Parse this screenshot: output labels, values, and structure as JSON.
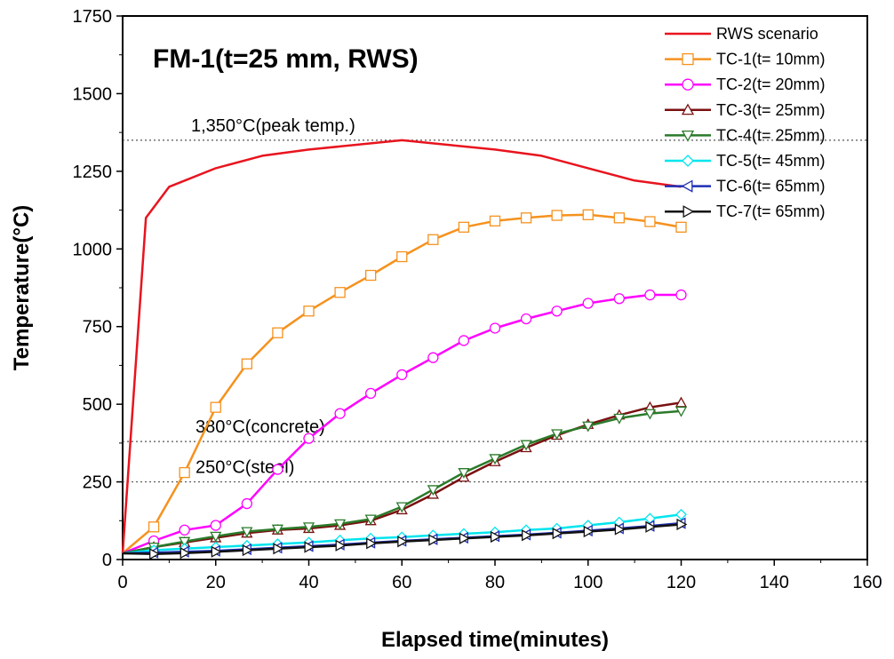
{
  "chart_data": {
    "type": "line",
    "title": "FM-1(t=25 mm, RWS)",
    "xlabel": "Elapsed time(minutes)",
    "ylabel": "Temperature(°C)",
    "xlim": [
      0,
      160
    ],
    "ylim": [
      0,
      1750
    ],
    "xticks": [
      "0",
      "20",
      "40",
      "60",
      "80",
      "100",
      "120",
      "140",
      "160"
    ],
    "yticks": [
      "0",
      "250",
      "500",
      "750",
      "1000",
      "1250",
      "1500",
      "1750"
    ],
    "legend_position": "top-right",
    "reference_lines": [
      {
        "value": 1350,
        "label": "1,350°C(peak temp.)"
      },
      {
        "value": 380,
        "label": "380°C(concrete)"
      },
      {
        "value": 250,
        "label": "250°C(steel)"
      }
    ],
    "series": [
      {
        "name": "RWS scenario",
        "color": "#e8141e",
        "marker": "none",
        "x": [
          0,
          5,
          10,
          20,
          30,
          40,
          60,
          70,
          80,
          90,
          100,
          110,
          120
        ],
        "y": [
          20,
          1100,
          1200,
          1260,
          1300,
          1320,
          1350,
          1335,
          1320,
          1300,
          1260,
          1220,
          1200
        ]
      },
      {
        "name": "TC-1(t= 10mm)",
        "color": "#f5921e",
        "marker": "square",
        "x": [
          0,
          6.7,
          13.3,
          20,
          26.7,
          33.3,
          40,
          46.7,
          53.3,
          60,
          66.7,
          73.3,
          80,
          86.7,
          93.3,
          100,
          106.7,
          113.3,
          120
        ],
        "y": [
          20,
          105,
          280,
          490,
          630,
          730,
          800,
          860,
          915,
          975,
          1030,
          1070,
          1090,
          1100,
          1108,
          1110,
          1100,
          1088,
          1070
        ]
      },
      {
        "name": "TC-2(t= 20mm)",
        "color": "#ff00ff",
        "marker": "circle",
        "x": [
          0,
          6.7,
          13.3,
          20,
          26.7,
          33.3,
          40,
          46.7,
          53.3,
          60,
          66.7,
          73.3,
          80,
          86.7,
          93.3,
          100,
          106.7,
          113.3,
          120
        ],
        "y": [
          20,
          60,
          95,
          110,
          180,
          290,
          390,
          470,
          535,
          595,
          650,
          705,
          745,
          775,
          800,
          825,
          840,
          852,
          852
        ]
      },
      {
        "name": "TC-3(t= 25mm)",
        "color": "#7a1010",
        "marker": "triangle-up",
        "x": [
          0,
          6.7,
          13.3,
          20,
          26.7,
          33.3,
          40,
          46.7,
          53.3,
          60,
          66.7,
          73.3,
          80,
          86.7,
          93.3,
          100,
          106.7,
          113.3,
          120
        ],
        "y": [
          20,
          40,
          55,
          70,
          85,
          95,
          100,
          110,
          125,
          160,
          210,
          265,
          315,
          360,
          400,
          435,
          465,
          490,
          505
        ]
      },
      {
        "name": "TC-4(t= 25mm)",
        "color": "#2a7a2a",
        "marker": "triangle-down",
        "x": [
          0,
          6.7,
          13.3,
          20,
          26.7,
          33.3,
          40,
          46.7,
          53.3,
          60,
          66.7,
          73.3,
          80,
          86.7,
          93.3,
          100,
          106.7,
          113.3,
          120
        ],
        "y": [
          20,
          40,
          58,
          75,
          90,
          98,
          105,
          115,
          130,
          170,
          225,
          280,
          325,
          370,
          405,
          430,
          455,
          470,
          478
        ]
      },
      {
        "name": "TC-5(t= 45mm)",
        "color": "#00e5ee",
        "marker": "diamond",
        "x": [
          0,
          6.7,
          13.3,
          20,
          26.7,
          33.3,
          40,
          46.7,
          53.3,
          60,
          66.7,
          73.3,
          80,
          86.7,
          93.3,
          100,
          106.7,
          113.3,
          120
        ],
        "y": [
          20,
          30,
          35,
          40,
          45,
          50,
          55,
          62,
          68,
          72,
          78,
          83,
          88,
          95,
          100,
          110,
          120,
          132,
          145
        ]
      },
      {
        "name": "TC-6(t= 65mm)",
        "color": "#1f2fb4",
        "marker": "triangle-left",
        "x": [
          0,
          6.7,
          13.3,
          20,
          26.7,
          33.3,
          40,
          46.7,
          53.3,
          60,
          66.7,
          73.3,
          80,
          86.7,
          93.3,
          100,
          106.7,
          113.3,
          120
        ],
        "y": [
          20,
          22,
          25,
          28,
          33,
          38,
          43,
          48,
          54,
          60,
          65,
          70,
          75,
          80,
          86,
          93,
          100,
          108,
          117
        ]
      },
      {
        "name": "TC-7(t= 65mm)",
        "color": "#111111",
        "marker": "triangle-right",
        "x": [
          0,
          6.7,
          13.3,
          20,
          26.7,
          33.3,
          40,
          46.7,
          53.3,
          60,
          66.7,
          73.3,
          80,
          86.7,
          93.3,
          100,
          106.7,
          113.3,
          120
        ],
        "y": [
          20,
          18,
          21,
          25,
          30,
          35,
          40,
          45,
          52,
          58,
          63,
          68,
          73,
          78,
          84,
          90,
          97,
          105,
          113
        ]
      }
    ]
  }
}
